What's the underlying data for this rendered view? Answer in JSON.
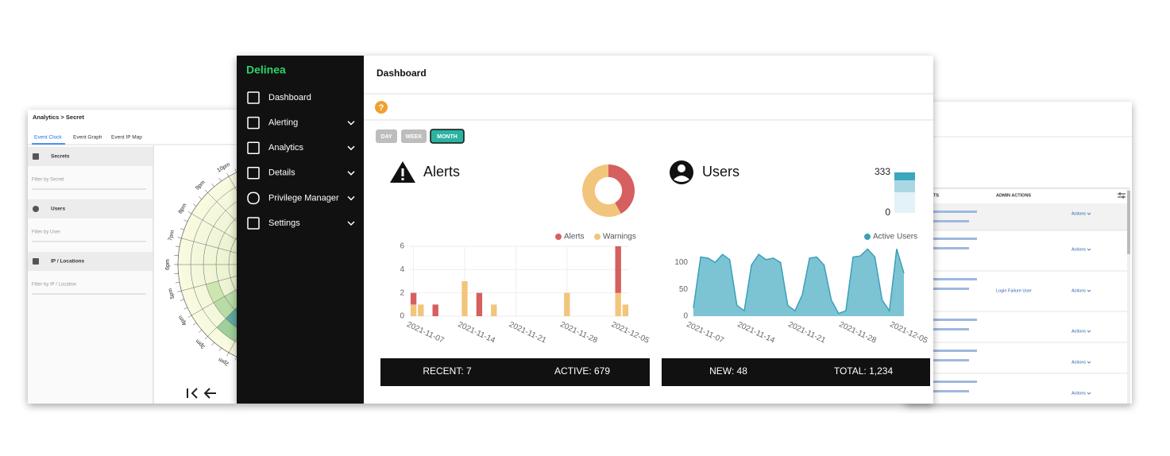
{
  "left_panel": {
    "breadcrumb": "Analytics > Secret",
    "tabs": [
      "Event Clock",
      "Event Graph",
      "Event IP Map"
    ],
    "filters": [
      {
        "title": "Secrets",
        "placeholder": "Filter by Secret"
      },
      {
        "title": "Users",
        "placeholder": "Filter by User"
      },
      {
        "title": "IP / Locations",
        "placeholder": "Filter by IP / Location"
      }
    ],
    "clock_labels": [
      "10pm",
      "9pm",
      "8pm",
      "7pm",
      "6pm",
      "5pm",
      "4pm",
      "3pm",
      "2pm"
    ]
  },
  "right_panel": {
    "columns": [
      "EVENTS",
      "ADMIN ACTIONS"
    ],
    "rows": [
      {
        "action": "Actions"
      },
      {
        "action": "Actions"
      },
      {
        "admin_action": "Login Failure User",
        "action": "Actions"
      },
      {
        "action": "Actions"
      },
      {
        "action": "Actions"
      },
      {
        "action": "Actions"
      }
    ]
  },
  "sidebar": {
    "logo": "Delinea",
    "menu": [
      "Dashboard",
      "Alerting",
      "Analytics",
      "Details",
      "Privilege Manager",
      "Settings"
    ]
  },
  "header": {
    "title": "Dashboard",
    "help_icon": "?"
  },
  "range_buttons": [
    "DAY",
    "WEEK",
    "MONTH"
  ],
  "alerts_card": {
    "title": "Alerts",
    "summary": {
      "type": "pie",
      "values": [
        8,
        11
      ],
      "colors": [
        "#d65f5f",
        "#f2c57c"
      ]
    },
    "chart": {
      "type": "bar",
      "stacked": true,
      "categories": [
        "2021-11-07",
        null,
        null,
        null,
        null,
        null,
        null,
        "2021-11-14",
        null,
        null,
        null,
        null,
        null,
        null,
        "2021-11-21",
        null,
        null,
        null,
        null,
        null,
        null,
        "2021-11-28",
        null,
        null,
        null,
        null,
        null,
        null,
        "2021-12-05",
        null
      ],
      "series": [
        {
          "name": "Alerts",
          "color": "#d65f5f",
          "values": [
            1,
            0,
            0,
            1,
            0,
            0,
            0,
            0,
            0,
            2,
            0,
            0,
            0,
            0,
            0,
            0,
            0,
            0,
            0,
            0,
            0,
            0,
            0,
            0,
            0,
            0,
            0,
            0,
            4,
            0
          ]
        },
        {
          "name": "Warnings",
          "color": "#f2c57c",
          "values": [
            1,
            1,
            0,
            0,
            0,
            0,
            0,
            3,
            0,
            0,
            0,
            1,
            0,
            0,
            0,
            0,
            0,
            0,
            0,
            0,
            0,
            2,
            0,
            0,
            0,
            0,
            0,
            0,
            2,
            1
          ]
        }
      ],
      "ylim": [
        0,
        6
      ],
      "yticks": [
        0,
        2,
        4,
        6
      ],
      "grid": true
    },
    "footer": [
      "RECENT: 7",
      "ACTIVE: 679"
    ]
  },
  "users_card": {
    "title": "Users",
    "summary": {
      "type": "bar",
      "stacked": true,
      "values": [
        170,
        98,
        65
      ],
      "colors": [
        "#e2f2f6",
        "#a9d8e3",
        "#3aa7bd"
      ],
      "ylim": [
        0,
        333
      ],
      "yticks": [
        0,
        333
      ]
    },
    "chart": {
      "type": "area",
      "categories": [
        "2021-11-07",
        null,
        null,
        null,
        null,
        null,
        null,
        "2021-11-14",
        null,
        null,
        null,
        null,
        null,
        null,
        "2021-11-21",
        null,
        null,
        null,
        null,
        null,
        null,
        "2021-11-28",
        null,
        null,
        null,
        null,
        null,
        null,
        "2021-12-05",
        null
      ],
      "series": [
        {
          "name": "Active Users",
          "color": "#3aa0b8",
          "values": [
            15,
            110,
            108,
            100,
            115,
            105,
            20,
            10,
            95,
            115,
            105,
            108,
            100,
            20,
            10,
            40,
            108,
            110,
            95,
            30,
            5,
            10,
            110,
            112,
            125,
            110,
            30,
            10,
            125,
            80
          ]
        }
      ],
      "ylim": [
        0,
        130
      ],
      "yticks": [
        0,
        50,
        100
      ],
      "grid": false
    },
    "footer": [
      "NEW: 48",
      "TOTAL: 1,234"
    ]
  }
}
